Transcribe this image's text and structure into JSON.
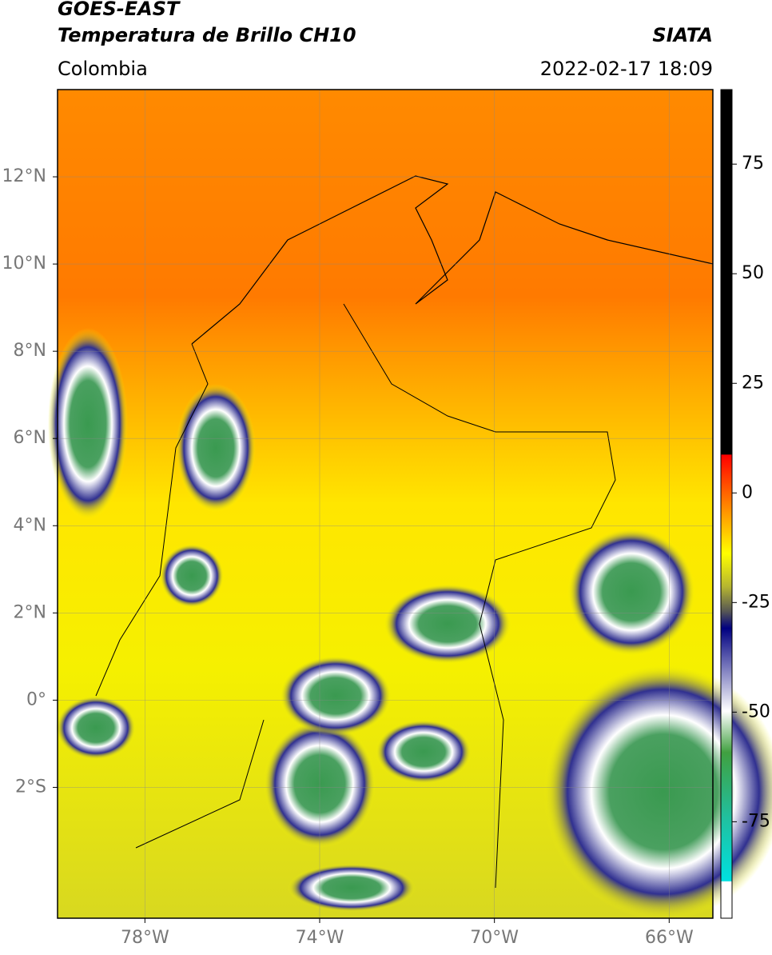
{
  "header": {
    "line1": "GOES-EAST",
    "line2": "Temperatura de Brillo CH10",
    "source": "SIATA",
    "region": "Colombia",
    "datetime": "2022-02-17 18:09"
  },
  "map": {
    "lat_range": [
      -5,
      14
    ],
    "lon_range": [
      -80,
      -65
    ],
    "lat_ticks": [
      {
        "value": 12,
        "label": "12°N"
      },
      {
        "value": 10,
        "label": "10°N"
      },
      {
        "value": 8,
        "label": "8°N"
      },
      {
        "value": 6,
        "label": "6°N"
      },
      {
        "value": 4,
        "label": "4°N"
      },
      {
        "value": 2,
        "label": "2°N"
      },
      {
        "value": 0,
        "label": "0°"
      },
      {
        "value": -2,
        "label": "2°S"
      }
    ],
    "lon_ticks": [
      {
        "value": -78,
        "label": "78°W"
      },
      {
        "value": -74,
        "label": "74°W"
      },
      {
        "value": -70,
        "label": "70°W"
      },
      {
        "value": -66,
        "label": "66°W"
      }
    ]
  },
  "colorbar": {
    "range": [
      92,
      -97
    ],
    "ticks": [
      75,
      50,
      25,
      0,
      -25,
      -50,
      -75
    ]
  }
}
